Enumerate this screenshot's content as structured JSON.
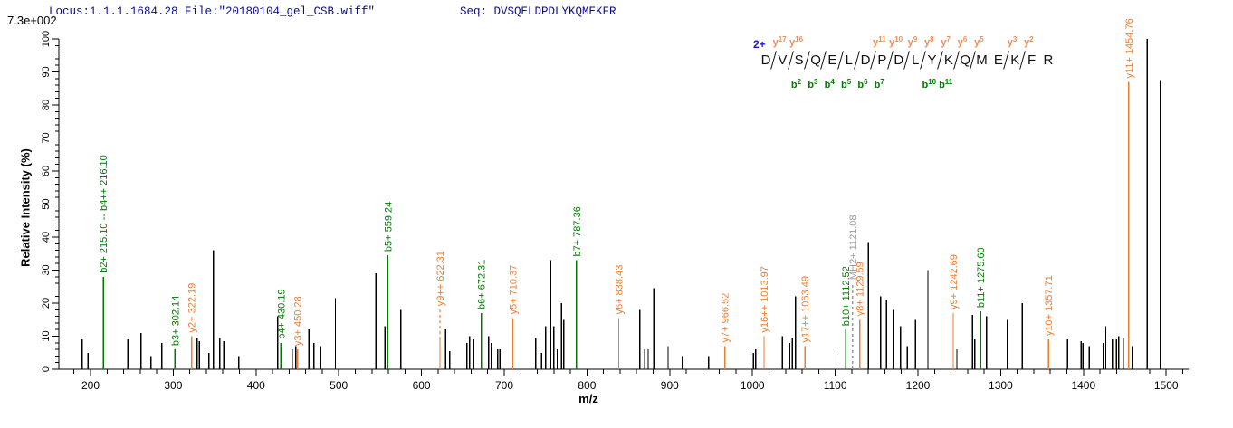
{
  "header": {
    "locus_line": "Locus:1.1.1.1684.28 File:\"20180104_gel_CSB.wiff\"",
    "seq_line": "Seq: DVSQELDPDLYKQMEKFR",
    "base_peak_intensity": "7.3e+002"
  },
  "colors": {
    "header_navy": "#0b0b8f",
    "axis_black": "#000000",
    "peak_black": "#000000",
    "b_ion_green": "#007a00",
    "y_ion_orange": "#ed7d31",
    "seq_y_orange": "#f08c5a",
    "precursor_gray": "#9a9a9a",
    "charge_blue": "#1a1acc"
  },
  "sequence_ladder": {
    "charge": "2+",
    "residues": [
      "D",
      "V",
      "S",
      "Q",
      "E",
      "L",
      "D",
      "P",
      "D",
      "L",
      "Y",
      "K",
      "Q",
      "M",
      "E",
      "K",
      "F",
      "R"
    ],
    "cleavages": [
      {
        "after": 1,
        "y": "y17"
      },
      {
        "after": 2,
        "y": "y16",
        "b": "b2"
      },
      {
        "after": 3,
        "b": "b3"
      },
      {
        "after": 4,
        "b": "b4"
      },
      {
        "after": 5,
        "b": "b5"
      },
      {
        "after": 6,
        "b": "b6"
      },
      {
        "after": 7,
        "y": "y11",
        "b": "b7"
      },
      {
        "after": 8,
        "y": "y10"
      },
      {
        "after": 9,
        "y": "y9"
      },
      {
        "after": 10,
        "y": "y8",
        "b": "b10"
      },
      {
        "after": 11,
        "y": "y7",
        "b": "b11"
      },
      {
        "after": 12,
        "y": "y6"
      },
      {
        "after": 13,
        "y": "y5"
      },
      {
        "after": 15,
        "y": "y3"
      },
      {
        "after": 16,
        "y": "y2"
      }
    ]
  },
  "chart_data": {
    "type": "bar",
    "subtype": "ms2-fragmentation-spectrum",
    "title": "",
    "xlabel": "m/z",
    "ylabel": "Relative  Intensity (%)",
    "xlim": [
      162,
      1527
    ],
    "ylim": [
      0,
      100
    ],
    "x_major_ticks": [
      200,
      300,
      400,
      500,
      600,
      700,
      800,
      900,
      1000,
      1100,
      1200,
      1300,
      1400,
      1500
    ],
    "x_minor_tick_step": 20,
    "y_major_ticks": [
      0,
      10,
      20,
      30,
      40,
      50,
      60,
      70,
      80,
      90,
      100
    ],
    "y_minor_tick_step": 2,
    "grid": false,
    "base_peak_intensity": "7.3e+002",
    "labeled_peaks": [
      {
        "mz": 215.5,
        "intensity": 28,
        "series": "b",
        "label": "b2+ 215.10 -- b4++ 216.10"
      },
      {
        "mz": 302.14,
        "intensity": 6,
        "series": "b",
        "label": "b3+ 302.14"
      },
      {
        "mz": 322.19,
        "intensity": 10,
        "series": "y",
        "label": "y2+ 322.19"
      },
      {
        "mz": 430.19,
        "intensity": 8,
        "series": "b",
        "label": "b4+ 430.19"
      },
      {
        "mz": 450.28,
        "intensity": 6,
        "series": "y",
        "label": "y3+ 450.28"
      },
      {
        "mz": 559.24,
        "intensity": 34.5,
        "series": "b",
        "label": "b5+ 559.24"
      },
      {
        "mz": 622.31,
        "intensity": 9,
        "series": "y",
        "label": "y9++ 622.31",
        "leader_to": 18
      },
      {
        "mz": 672.31,
        "intensity": 17,
        "series": "b",
        "label": "b6+ 672.31"
      },
      {
        "mz": 710.37,
        "intensity": 15.5,
        "series": "y",
        "label": "y5+ 710.37"
      },
      {
        "mz": 787.36,
        "intensity": 33,
        "series": "b",
        "label": "b7+ 787.36"
      },
      {
        "mz": 838.43,
        "intensity": 15.5,
        "series": "y",
        "label": "y6+ 838.43"
      },
      {
        "mz": 966.52,
        "intensity": 7,
        "series": "y",
        "label": "y7+ 966.52"
      },
      {
        "mz": 1013.97,
        "intensity": 10,
        "series": "y",
        "label": "y16++ 1013.97"
      },
      {
        "mz": 1063.49,
        "intensity": 7,
        "series": "y",
        "label": "y17++ 1063.49"
      },
      {
        "mz": 1112.52,
        "intensity": 12,
        "series": "b",
        "label": "b10+ 1112.52"
      },
      {
        "mz": 1121.08,
        "intensity": 26,
        "series": "prec",
        "label": "MH2+ 1121.08",
        "dashed": true
      },
      {
        "mz": 1129.59,
        "intensity": 15,
        "series": "y",
        "label": "y8+ 1129.59"
      },
      {
        "mz": 1242.69,
        "intensity": 17,
        "series": "y",
        "label": "y9+ 1242.69"
      },
      {
        "mz": 1275.6,
        "intensity": 17.5,
        "series": "b",
        "label": "b11+ 1275.60"
      },
      {
        "mz": 1357.71,
        "intensity": 9,
        "series": "y",
        "label": "y10+ 1357.71"
      },
      {
        "mz": 1454.76,
        "intensity": 87,
        "series": "y",
        "label": "y11+ 1454.76"
      }
    ],
    "unlabeled_peaks": [
      [
        190,
        9
      ],
      [
        197,
        5
      ],
      [
        245,
        9
      ],
      [
        261,
        11
      ],
      [
        273,
        4
      ],
      [
        286,
        8
      ],
      [
        329,
        9.5
      ],
      [
        331.5,
        8.5
      ],
      [
        343,
        5
      ],
      [
        348.5,
        36
      ],
      [
        356,
        9.5
      ],
      [
        361,
        8.5
      ],
      [
        379,
        4
      ],
      [
        426,
        16
      ],
      [
        444,
        6
      ],
      [
        448,
        7
      ],
      [
        464,
        12
      ],
      [
        470,
        8
      ],
      [
        478,
        7
      ],
      [
        496,
        21.5
      ],
      [
        545,
        29
      ],
      [
        556,
        13
      ],
      [
        558.5,
        11
      ],
      [
        575,
        18
      ],
      [
        629,
        12
      ],
      [
        634,
        5.5
      ],
      [
        655,
        8
      ],
      [
        658,
        10
      ],
      [
        663,
        9
      ],
      [
        681,
        10
      ],
      [
        684.5,
        8
      ],
      [
        692,
        6
      ],
      [
        695,
        6
      ],
      [
        738,
        9.5
      ],
      [
        745,
        5
      ],
      [
        750,
        13
      ],
      [
        756,
        33
      ],
      [
        760,
        13
      ],
      [
        764,
        6
      ],
      [
        769,
        20
      ],
      [
        772,
        15
      ],
      [
        864,
        18
      ],
      [
        870,
        6
      ],
      [
        874,
        6
      ],
      [
        881,
        24.5
      ],
      [
        898,
        7
      ],
      [
        915,
        4
      ],
      [
        947,
        4
      ],
      [
        997,
        6
      ],
      [
        1001,
        5
      ],
      [
        1004,
        6
      ],
      [
        1036,
        10
      ],
      [
        1045,
        8
      ],
      [
        1048,
        9.5
      ],
      [
        1052,
        22
      ],
      [
        1101,
        4.5
      ],
      [
        1140,
        38.5
      ],
      [
        1155,
        22
      ],
      [
        1162,
        21
      ],
      [
        1170,
        18
      ],
      [
        1179,
        13
      ],
      [
        1187,
        7
      ],
      [
        1197,
        15
      ],
      [
        1212,
        30
      ],
      [
        1247,
        6
      ],
      [
        1266,
        16.5
      ],
      [
        1268.5,
        9
      ],
      [
        1283,
        16
      ],
      [
        1308,
        15
      ],
      [
        1326,
        20
      ],
      [
        1381,
        9
      ],
      [
        1397,
        8.5
      ],
      [
        1399.5,
        8
      ],
      [
        1407,
        7
      ],
      [
        1424,
        8
      ],
      [
        1427,
        13
      ],
      [
        1435,
        9
      ],
      [
        1440,
        9
      ],
      [
        1442.5,
        10
      ],
      [
        1448,
        9.5
      ],
      [
        1459,
        7
      ],
      [
        1477,
        100
      ],
      [
        1493,
        87.5
      ]
    ]
  }
}
